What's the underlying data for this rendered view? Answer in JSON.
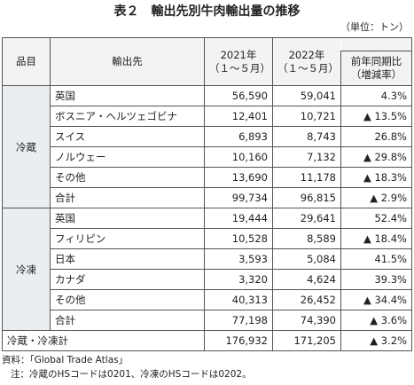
{
  "header": {
    "title": "表２　輸出先別牛肉輸出量の推移",
    "unit": "（単位：トン）"
  },
  "table": {
    "headers": [
      "品目",
      "輸出先",
      "2021年\n（１～５月）",
      "2022年\n（１～５月）",
      "前年同期比\n（増減率）"
    ],
    "groups": [
      {
        "name": "冷蔵",
        "rows": [
          [
            "英国",
            "56,590",
            "59,041",
            "4.3%"
          ],
          [
            "ボスニア・ヘルツェゴビナ",
            "12,401",
            "10,721",
            "▲ 13.5%"
          ],
          [
            "スイス",
            "6,893",
            "8,743",
            "26.8%"
          ],
          [
            "ノルウェー",
            "10,160",
            "7,132",
            "▲ 29.8%"
          ],
          [
            "その他",
            "13,690",
            "11,178",
            "▲ 18.3%"
          ],
          [
            "合計",
            "99,734",
            "96,815",
            "▲ 2.9%"
          ]
        ]
      },
      {
        "name": "冷凍",
        "rows": [
          [
            "英国",
            "19,444",
            "29,641",
            "52.4%"
          ],
          [
            "フィリピン",
            "10,528",
            "8,589",
            "▲ 18.4%"
          ],
          [
            "日本",
            "3,593",
            "5,084",
            "41.5%"
          ],
          [
            "カナダ",
            "3,320",
            "4,624",
            "39.3%"
          ],
          [
            "その他",
            "40,313",
            "26,452",
            "▲ 34.4%"
          ],
          [
            "合計",
            "77,198",
            "74,390",
            "▲ 3.6%"
          ]
        ]
      }
    ],
    "grand_total": [
      "冷蔵・冷凍計",
      "176,932",
      "171,205",
      "▲ 3.2%"
    ]
  },
  "notes": [
    "資料：「Global Trade Atlas」",
    "注：冷蔵のHSコードは0201、冷凍のHSコードは0202。"
  ]
}
